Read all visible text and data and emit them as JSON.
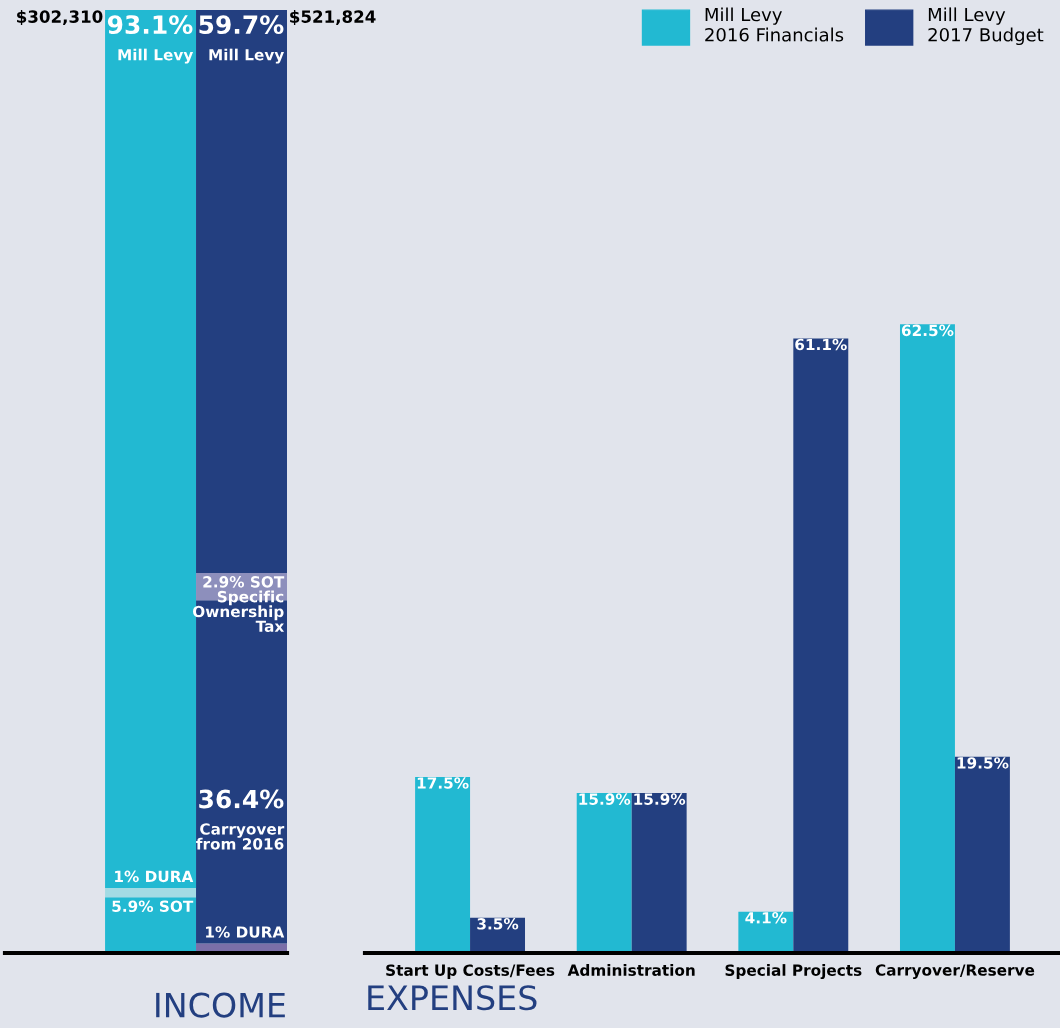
{
  "chart_data": [
    {
      "type": "bar",
      "stacked": true,
      "xlabel": "INCOME",
      "categories": [
        null,
        null
      ],
      "series": [
        {
          "colors": [
            "#22b9d2",
            "#7b6fa8"
          ],
          "values": [
            5.9,
            1
          ],
          "value_labels": [
            "5.9% SOT",
            "1% DURA"
          ]
        },
        {
          "colors": [
            "#a3dbe4",
            "#233f80"
          ],
          "values": [
            1,
            36.4
          ],
          "value_labels": [
            "1% DURA",
            "36.4%\nCarryover\nfrom 2016"
          ]
        },
        {
          "colors": [
            "#22b9d2",
            "#8d8fbc"
          ],
          "values": [
            93.1,
            2.9
          ],
          "value_labels": [
            "93.1%\nMill Levy",
            "2.9% SOT\nSpecific\nOwnership\nTax"
          ]
        },
        {
          "colors": [
            "#22b9d2",
            "#233f80"
          ],
          "values": [
            null,
            59.7
          ],
          "value_labels": [
            null,
            "59.7%\nMill Levy"
          ]
        }
      ],
      "annotations": [
        "$302,310",
        "$521,824"
      ]
    },
    {
      "type": "bar",
      "xlabel": "EXPENSES",
      "legend": "top right",
      "categories": [
        "Start Up Costs/Fees",
        "Administration",
        "Special Projects",
        "Carryover/Reserve"
      ],
      "series": [
        {
          "name": "Mill Levy\n2016 Financials",
          "color": "#22b9d2",
          "values": [
            17.5,
            15.9,
            4.1,
            62.5
          ],
          "value_labels": [
            "17.5%",
            "15.9%",
            "4.1%",
            "62.5%"
          ]
        },
        {
          "name": "Mill Levy\n2017 Budget",
          "color": "#233f80",
          "values": [
            3.5,
            15.9,
            61.1,
            19.5
          ],
          "value_labels": [
            "3.5%",
            "15.9%",
            "61.1%",
            "19.5%"
          ]
        }
      ]
    }
  ]
}
